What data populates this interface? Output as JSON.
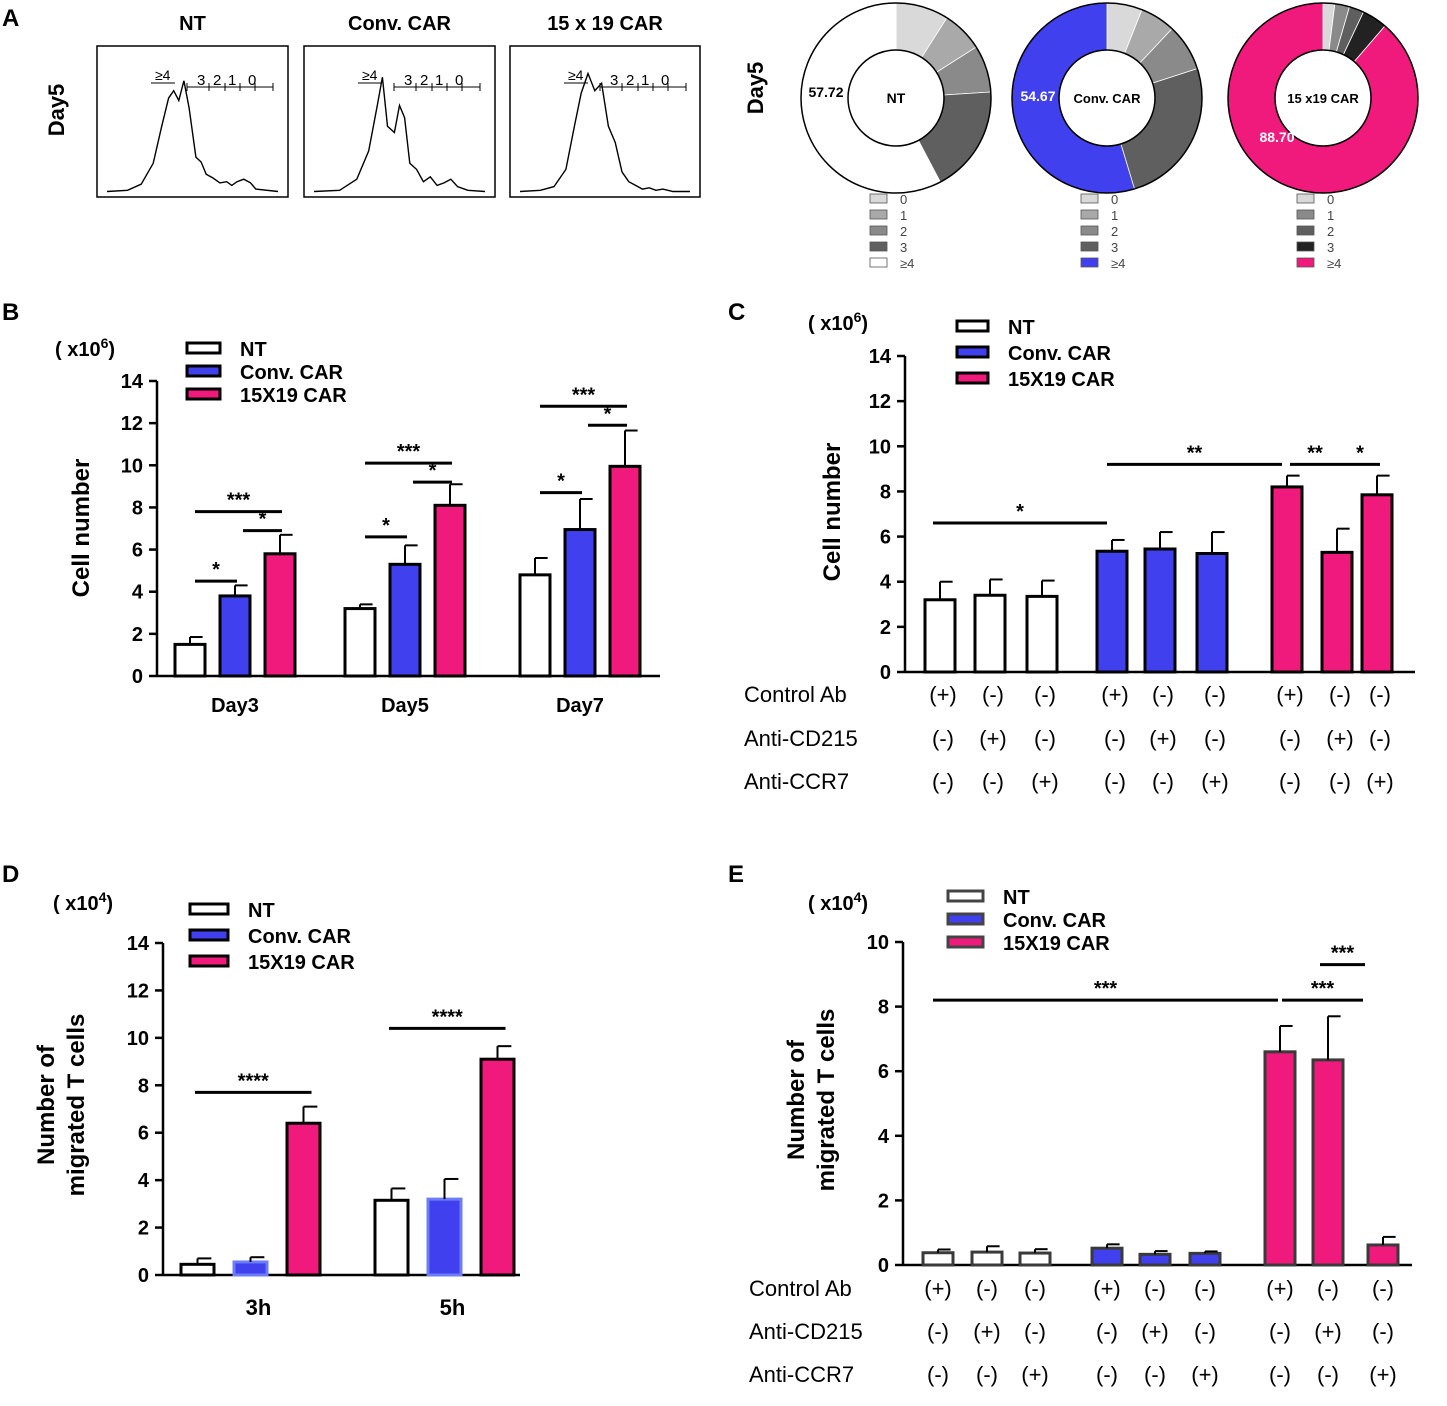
{
  "figure": {
    "panel_letters": [
      "A",
      "B",
      "C",
      "D",
      "E"
    ]
  },
  "colors": {
    "nt": "#ffffff",
    "conv": "#4040ee",
    "car1519": "#ef1a7b",
    "stroke": "#000000",
    "donut_greys": [
      "#d9d9d9",
      "#a9a9a9",
      "#8a8a8a",
      "#5f5f5f"
    ],
    "donut_greys_car": [
      "#d9d9d9",
      "#8a8a8a",
      "#5f5f5f",
      "#222222"
    ]
  },
  "chart_data": [
    {
      "id": "A-histograms",
      "type": "histogram",
      "row_label": "Day5",
      "panels": [
        {
          "title": "NT",
          "gates": [
            "≥4",
            "3",
            "2",
            "1",
            "0"
          ]
        },
        {
          "title": "Conv. CAR",
          "gates": [
            "≥4",
            "3",
            "2",
            "1",
            "0"
          ]
        },
        {
          "title": "15 x 19 CAR",
          "gates": [
            "≥4",
            "3",
            "2",
            "1",
            "0"
          ]
        }
      ]
    },
    {
      "id": "A-donuts",
      "type": "pie",
      "row_label": "Day5",
      "legend_labels": [
        "0",
        "1",
        "2",
        "3",
        "≥4"
      ],
      "donuts": [
        {
          "center_label": "NT",
          "value_label": "57.72",
          "slices": [
            {
              "name": "0",
              "value": 9.0
            },
            {
              "name": "1",
              "value": 7.0
            },
            {
              "name": "2",
              "value": 8.0
            },
            {
              "name": "3",
              "value": 18.28
            },
            {
              "name": "≥4",
              "value": 57.72
            }
          ]
        },
        {
          "center_label": "Conv. CAR",
          "value_label": "54.67",
          "slices": [
            {
              "name": "0",
              "value": 6.0
            },
            {
              "name": "1",
              "value": 6.0
            },
            {
              "name": "2",
              "value": 8.0
            },
            {
              "name": "3",
              "value": 25.33
            },
            {
              "name": "≥4",
              "value": 54.67
            }
          ]
        },
        {
          "center_label": "15 x19 CAR",
          "value_label": "88.70",
          "slices": [
            {
              "name": "0",
              "value": 2.0
            },
            {
              "name": "1",
              "value": 2.5
            },
            {
              "name": "2",
              "value": 2.5
            },
            {
              "name": "3",
              "value": 4.3
            },
            {
              "name": "≥4",
              "value": 88.7
            }
          ]
        }
      ]
    },
    {
      "id": "B",
      "type": "bar",
      "unit_prefix": "( x10",
      "unit_exp": "6",
      "unit_suffix": ")",
      "ylabel": "Cell number",
      "ylim": [
        0,
        14
      ],
      "yticks": [
        0,
        2,
        4,
        6,
        8,
        10,
        12,
        14
      ],
      "legend": [
        "NT",
        "Conv. CAR",
        "15X19 CAR"
      ],
      "categories": [
        "Day3",
        "Day5",
        "Day7"
      ],
      "series": [
        {
          "name": "NT",
          "values": [
            1.5,
            3.2,
            4.8
          ],
          "errors": [
            0.35,
            0.2,
            0.8
          ]
        },
        {
          "name": "Conv. CAR",
          "values": [
            3.8,
            5.3,
            6.95
          ],
          "errors": [
            0.5,
            0.9,
            1.45
          ]
        },
        {
          "name": "15X19 CAR",
          "values": [
            5.8,
            8.1,
            9.95
          ],
          "errors": [
            0.9,
            1.0,
            1.7
          ]
        }
      ],
      "significance": [
        {
          "label": "*",
          "cat": 0,
          "from": 0,
          "to": 1,
          "y": 4.5
        },
        {
          "label": "*",
          "cat": 0,
          "from": 1,
          "to": 2,
          "y": 6.9
        },
        {
          "label": "***",
          "cat": 0,
          "from": 0,
          "to": 2,
          "y": 7.8
        },
        {
          "label": "*",
          "cat": 1,
          "from": 0,
          "to": 1,
          "y": 6.6
        },
        {
          "label": "*",
          "cat": 1,
          "from": 1,
          "to": 2,
          "y": 9.2
        },
        {
          "label": "***",
          "cat": 1,
          "from": 0,
          "to": 2,
          "y": 10.1
        },
        {
          "label": "*",
          "cat": 2,
          "from": 0,
          "to": 1,
          "y": 8.7
        },
        {
          "label": "*",
          "cat": 2,
          "from": 1,
          "to": 2,
          "y": 11.9
        },
        {
          "label": "***",
          "cat": 2,
          "from": 0,
          "to": 2,
          "y": 12.8
        }
      ]
    },
    {
      "id": "C",
      "type": "bar",
      "unit_prefix": "( x10",
      "unit_exp": "6",
      "unit_suffix": ")",
      "ylabel": "Cell number",
      "ylim": [
        0,
        14
      ],
      "yticks": [
        0,
        2,
        4,
        6,
        8,
        10,
        12,
        14
      ],
      "legend": [
        "NT",
        "Conv. CAR",
        "15X19 CAR"
      ],
      "bars": [
        {
          "series": 0,
          "value": 3.2,
          "error": 0.8
        },
        {
          "series": 0,
          "value": 3.4,
          "error": 0.7
        },
        {
          "series": 0,
          "value": 3.35,
          "error": 0.7
        },
        {
          "series": 1,
          "value": 5.35,
          "error": 0.5
        },
        {
          "series": 1,
          "value": 5.45,
          "error": 0.75
        },
        {
          "series": 1,
          "value": 5.25,
          "error": 0.95
        },
        {
          "series": 2,
          "value": 8.2,
          "error": 0.5
        },
        {
          "series": 2,
          "value": 5.3,
          "error": 1.05
        },
        {
          "series": 2,
          "value": 7.85,
          "error": 0.85
        }
      ],
      "significance": [
        {
          "label": "*",
          "from": 0,
          "to": 3,
          "y": 6.6
        },
        {
          "label": "**",
          "from": 3,
          "to": 6,
          "y": 9.2
        },
        {
          "label": "**",
          "from": 6,
          "to": 7,
          "y": 9.2
        },
        {
          "label": "*",
          "from": 7,
          "to": 8,
          "y": 9.2
        }
      ],
      "conditions": {
        "rows": [
          "Control  Ab",
          "Anti-CD215",
          "Anti-CCR7"
        ],
        "values": [
          [
            "(+)",
            "(-)",
            "(-)",
            "(+)",
            "(-)",
            "(-)",
            "(+)",
            "(-)",
            "(-)"
          ],
          [
            "(-)",
            "(+)",
            "(-)",
            "(-)",
            "(+)",
            "(-)",
            "(-)",
            "(+)",
            "(-)"
          ],
          [
            "(-)",
            "(-)",
            "(+)",
            "(-)",
            "(-)",
            "(+)",
            "(-)",
            "(-)",
            "(+)"
          ]
        ]
      }
    },
    {
      "id": "D",
      "type": "bar",
      "unit_prefix": "( x10",
      "unit_exp": "4",
      "unit_suffix": ")",
      "ylabel": "Number of",
      "ylabel2": "migrated T cells",
      "ylim": [
        0,
        14
      ],
      "yticks": [
        0,
        2,
        4,
        6,
        8,
        10,
        12,
        14
      ],
      "legend": [
        "NT",
        "Conv. CAR",
        "15X19 CAR"
      ],
      "categories": [
        "3h",
        "5h"
      ],
      "series": [
        {
          "name": "NT",
          "values": [
            0.45,
            3.15
          ],
          "errors": [
            0.25,
            0.5
          ]
        },
        {
          "name": "Conv. CAR",
          "values": [
            0.55,
            3.2
          ],
          "errors": [
            0.2,
            0.85
          ]
        },
        {
          "name": "15X19 CAR",
          "values": [
            6.4,
            9.1
          ],
          "errors": [
            0.7,
            0.55
          ]
        }
      ],
      "significance": [
        {
          "label": "****",
          "cat": 0,
          "from": 0,
          "to": 2,
          "y": 7.7
        },
        {
          "label": "****",
          "cat": 1,
          "from": 0,
          "to": 2,
          "y": 10.4
        }
      ]
    },
    {
      "id": "E",
      "type": "bar",
      "unit_prefix": "( x10",
      "unit_exp": "4",
      "unit_suffix": ")",
      "ylabel": "Number of",
      "ylabel2": "migrated T cells",
      "ylim": [
        0,
        10
      ],
      "yticks": [
        0,
        2,
        4,
        6,
        8,
        10
      ],
      "legend": [
        "NT",
        "Conv. CAR",
        "15X19 CAR"
      ],
      "bars": [
        {
          "series": 0,
          "value": 0.38,
          "error": 0.1
        },
        {
          "series": 0,
          "value": 0.4,
          "error": 0.18
        },
        {
          "series": 0,
          "value": 0.37,
          "error": 0.12
        },
        {
          "series": 1,
          "value": 0.52,
          "error": 0.12
        },
        {
          "series": 1,
          "value": 0.33,
          "error": 0.1
        },
        {
          "series": 1,
          "value": 0.36,
          "error": 0.06
        },
        {
          "series": 2,
          "value": 6.6,
          "error": 0.8
        },
        {
          "series": 2,
          "value": 6.35,
          "error": 1.35
        },
        {
          "series": 2,
          "value": 0.62,
          "error": 0.25
        }
      ],
      "significance": [
        {
          "label": "***",
          "from": 0,
          "to": 6,
          "y": 8.2
        },
        {
          "label": "***",
          "from": 6,
          "to": 7,
          "y": 8.2
        },
        {
          "label": "***",
          "from": 7,
          "to": 8,
          "y": 9.3
        }
      ],
      "conditions": {
        "rows": [
          "Control  Ab",
          "Anti-CD215",
          "Anti-CCR7"
        ],
        "values": [
          [
            "(+)",
            "(-)",
            "(-)",
            "(+)",
            "(-)",
            "(-)",
            "(+)",
            "(-)",
            "(-)"
          ],
          [
            "(-)",
            "(+)",
            "(-)",
            "(-)",
            "(+)",
            "(-)",
            "(-)",
            "(+)",
            "(-)"
          ],
          [
            "(-)",
            "(-)",
            "(+)",
            "(-)",
            "(-)",
            "(+)",
            "(-)",
            "(-)",
            "(+)"
          ]
        ]
      }
    }
  ]
}
